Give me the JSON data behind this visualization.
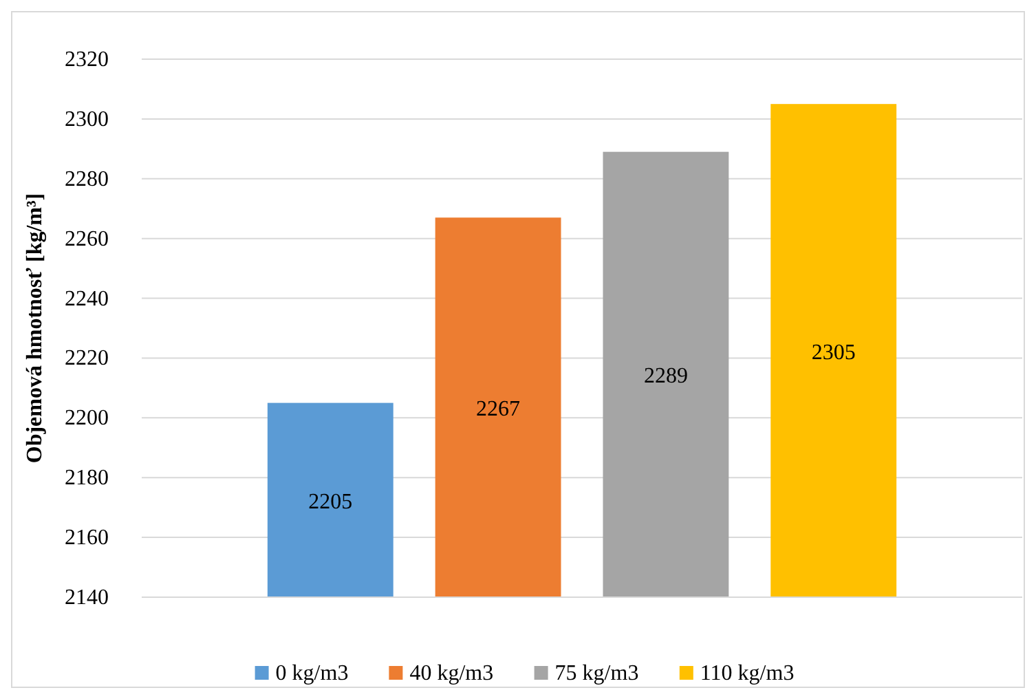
{
  "chart_data": {
    "type": "bar",
    "ylabel": "Objemová hmotnosť [kg/m³]",
    "categories": [
      null
    ],
    "series": [
      {
        "name": "0 kg/m3",
        "color": "#5b9bd5",
        "values": [
          2205
        ]
      },
      {
        "name": "40 kg/m3",
        "color": "#ed7d31",
        "values": [
          2267
        ]
      },
      {
        "name": "75 kg/m3",
        "color": "#a5a5a5",
        "values": [
          2289
        ]
      },
      {
        "name": "110 kg/m3",
        "color": "#ffc000",
        "values": [
          2305
        ]
      }
    ],
    "ylim": [
      2140,
      2320
    ],
    "yticks": [
      2140,
      2160,
      2180,
      2200,
      2220,
      2240,
      2260,
      2280,
      2300,
      2320
    ],
    "grid": "y",
    "legend": "bottom",
    "data_labels": true
  }
}
